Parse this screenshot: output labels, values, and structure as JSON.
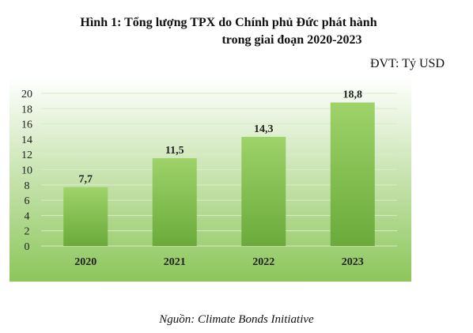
{
  "title_line1": "Hình 1: Tổng lượng TPX do Chính phủ Đức phát hành",
  "title_line2": "trong giai đoạn 2020-2023",
  "unit_label": "ĐVT: Tỷ USD",
  "source_label": "Nguồn: Climate Bonds Initiative",
  "colors": {
    "bar_top": "#9ed36a",
    "bar_bottom": "#6aaa3a",
    "bg_top": "#ffffff",
    "bg_bottom": "#8cc65a",
    "grid": "#d9ecc6",
    "text": "#222222"
  },
  "chart_data": {
    "type": "bar",
    "categories": [
      "2020",
      "2021",
      "2022",
      "2023"
    ],
    "values": [
      7.7,
      11.5,
      14.3,
      18.8
    ],
    "value_labels": [
      "7,7",
      "11,5",
      "14,3",
      "18,8"
    ],
    "ylim": [
      0,
      20
    ],
    "yticks": [
      0,
      2,
      4,
      6,
      8,
      10,
      12,
      14,
      16,
      18,
      20
    ],
    "grid": true,
    "title": "",
    "xlabel": "",
    "ylabel": ""
  }
}
